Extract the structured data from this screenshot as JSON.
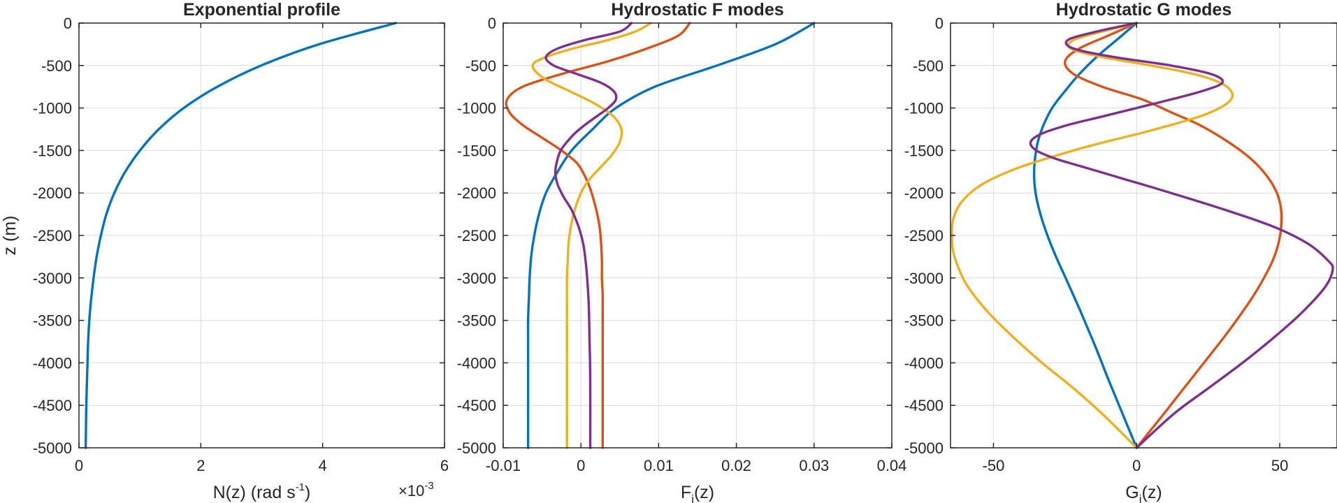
{
  "colors": {
    "axis": "#262626",
    "grid": "#dcdcdc",
    "series": [
      "#0072BD",
      "#D95319",
      "#EDB120",
      "#7E2F8E"
    ]
  },
  "chart_data": [
    {
      "type": "line",
      "title": "Exponential profile",
      "xlabel": {
        "main": "N(z) (rad s",
        "sup": "-1",
        "tail": ")"
      },
      "ylabel": "z (m)",
      "exponent_label": "×10",
      "exponent_power": "-3",
      "xlim": [
        0,
        6
      ],
      "ylim": [
        -5000,
        0
      ],
      "xticks": [
        0,
        2,
        4,
        6
      ],
      "xtick_labels": [
        "0",
        "2",
        "4",
        "6"
      ],
      "yticks": [
        0,
        -500,
        -1000,
        -1500,
        -2000,
        -2500,
        -3000,
        -3500,
        -4000,
        -4500,
        -5000
      ],
      "ytick_labels": [
        "0",
        "-500",
        "-1000",
        "-1500",
        "-2000",
        "-2500",
        "-3000",
        "-3500",
        "-4000",
        "-4500",
        "-5000"
      ],
      "grid": true,
      "series": [
        {
          "color_index": 0,
          "z": [
            0,
            -250,
            -500,
            -750,
            -1000,
            -1250,
            -1500,
            -1750,
            -2000,
            -2250,
            -2500,
            -2750,
            -3000,
            -3250,
            -3500,
            -3750,
            -4000,
            -4250,
            -4500,
            -4750,
            -5000
          ],
          "values": [
            5.2,
            3.94,
            2.99,
            2.27,
            1.72,
            1.31,
            1.0,
            0.76,
            0.58,
            0.45,
            0.36,
            0.29,
            0.24,
            0.2,
            0.17,
            0.15,
            0.14,
            0.13,
            0.12,
            0.115,
            0.11
          ]
        }
      ]
    },
    {
      "type": "line",
      "title": "Hydrostatic F modes",
      "xlabel": {
        "main": "F",
        "sub": "j",
        "tail": "(z)"
      },
      "ylabel": "",
      "xlim": [
        -0.01,
        0.04
      ],
      "ylim": [
        -5000,
        0
      ],
      "xticks": [
        -0.01,
        0,
        0.01,
        0.02,
        0.03,
        0.04
      ],
      "xtick_labels": [
        "-0.01",
        "0",
        "0.01",
        "0.02",
        "0.03",
        "0.04"
      ],
      "yticks": [
        0,
        -500,
        -1000,
        -1500,
        -2000,
        -2500,
        -3000,
        -3500,
        -4000,
        -4500,
        -5000
      ],
      "ytick_labels": [
        "0",
        "-500",
        "-1000",
        "-1500",
        "-2000",
        "-2500",
        "-3000",
        "-3500",
        "-4000",
        "-4500",
        "-5000"
      ],
      "grid": true,
      "series": [
        {
          "color_index": 0,
          "z": [
            0,
            -250,
            -500,
            -750,
            -1000,
            -1250,
            -1500,
            -1750,
            -2000,
            -2250,
            -2500,
            -2750,
            -3000,
            -3250,
            -3500,
            -3750,
            -4000,
            -4500,
            -5000
          ],
          "values": [
            0.03,
            0.025,
            0.0175,
            0.0095,
            0.0045,
            0.0015,
            -0.0012,
            -0.003,
            -0.0045,
            -0.0054,
            -0.006,
            -0.0064,
            -0.0066,
            -0.0067,
            -0.0068,
            -0.0068,
            -0.0068,
            -0.0068,
            -0.0068
          ]
        },
        {
          "color_index": 1,
          "z": [
            0,
            -150,
            -300,
            -450,
            -600,
            -750,
            -900,
            -1050,
            -1200,
            -1350,
            -1500,
            -1650,
            -1800,
            -1950,
            -2100,
            -2250,
            -2400,
            -2600,
            -2800,
            -3000,
            -3200,
            -3400,
            -3600,
            -4000,
            -5000
          ],
          "values": [
            0.014,
            0.0125,
            0.0085,
            0.0035,
            -0.0025,
            -0.0075,
            -0.0095,
            -0.0092,
            -0.0075,
            -0.005,
            -0.0025,
            -0.0005,
            0.0005,
            0.0012,
            0.0017,
            0.0021,
            0.0024,
            0.0026,
            0.0027,
            0.0027,
            0.0028,
            0.0028,
            0.0028,
            0.0028,
            0.0028
          ]
        },
        {
          "color_index": 2,
          "z": [
            0,
            -100,
            -200,
            -300,
            -400,
            -500,
            -650,
            -800,
            -950,
            -1100,
            -1250,
            -1400,
            -1550,
            -1700,
            -1850,
            -2000,
            -2200,
            -2400,
            -2600,
            -2800,
            -3000,
            -3200,
            -3500,
            -4000,
            -5000
          ],
          "values": [
            0.009,
            0.007,
            0.0035,
            -0.001,
            -0.0045,
            -0.0062,
            -0.0048,
            -0.0015,
            0.0018,
            0.0042,
            0.0052,
            0.005,
            0.004,
            0.0025,
            0.001,
            0.0,
            -0.0008,
            -0.0013,
            -0.0016,
            -0.0017,
            -0.0018,
            -0.0018,
            -0.0018,
            -0.0018,
            -0.0018
          ]
        },
        {
          "color_index": 3,
          "z": [
            0,
            -100,
            -200,
            -300,
            -400,
            -500,
            -600,
            -700,
            -800,
            -900,
            -1000,
            -1100,
            -1200,
            -1300,
            -1400,
            -1500,
            -1600,
            -1750,
            -1900,
            -2050,
            -2200,
            -2400,
            -2600,
            -2800,
            -3000,
            -3300,
            -3700,
            -4200,
            -5000
          ],
          "values": [
            0.0065,
            0.005,
            0.0005,
            -0.003,
            -0.0045,
            -0.0035,
            -0.0005,
            0.0025,
            0.0042,
            0.0045,
            0.0035,
            0.002,
            0.0005,
            -0.0008,
            -0.0018,
            -0.0026,
            -0.003,
            -0.0033,
            -0.003,
            -0.0022,
            -0.0012,
            -0.0003,
            0.0003,
            0.0006,
            0.0008,
            0.001,
            0.0011,
            0.0012,
            0.0012
          ]
        }
      ]
    },
    {
      "type": "line",
      "title": "Hydrostatic G modes",
      "xlabel": {
        "main": "G",
        "sub": "j",
        "tail": "(z)"
      },
      "ylabel": "",
      "xlim": [
        -65,
        70
      ],
      "ylim": [
        -5000,
        0
      ],
      "xticks": [
        -50,
        0,
        50
      ],
      "xtick_labels": [
        "-50",
        "0",
        "50"
      ],
      "yticks": [
        0,
        -500,
        -1000,
        -1500,
        -2000,
        -2500,
        -3000,
        -3500,
        -4000,
        -4500,
        -5000
      ],
      "ytick_labels": [
        "0",
        "-500",
        "-1000",
        "-1500",
        "-2000",
        "-2500",
        "-3000",
        "-3500",
        "-4000",
        "-4500",
        "-5000"
      ],
      "grid": true,
      "series": [
        {
          "color_index": 0,
          "z": [
            0,
            -200,
            -400,
            -600,
            -800,
            -1000,
            -1200,
            -1400,
            -1600,
            -1800,
            -2000,
            -2200,
            -2400,
            -2600,
            -2800,
            -3000,
            -3400,
            -3800,
            -4200,
            -4600,
            -5000
          ],
          "values": [
            0,
            -7,
            -14,
            -20,
            -25,
            -29.5,
            -32.5,
            -34.5,
            -35.5,
            -35.8,
            -35.3,
            -34,
            -32.2,
            -30,
            -27.5,
            -24.8,
            -19.5,
            -14.5,
            -9.8,
            -4.9,
            0
          ]
        },
        {
          "color_index": 1,
          "z": [
            0,
            -150,
            -300,
            -450,
            -600,
            -750,
            -900,
            -1050,
            -1200,
            -1400,
            -1600,
            -1800,
            -2000,
            -2200,
            -2400,
            -2600,
            -2800,
            -3000,
            -3200,
            -3400,
            -3700,
            -4000,
            -4300,
            -4600,
            -5000
          ],
          "values": [
            0,
            -10,
            -20,
            -25,
            -22,
            -12,
            2,
            12,
            22,
            32,
            40,
            45.5,
            49,
            50.5,
            50.5,
            49.5,
            47.5,
            44.5,
            41,
            37,
            30.5,
            23.5,
            16.5,
            9.5,
            0
          ]
        },
        {
          "color_index": 2,
          "z": [
            0,
            -100,
            -200,
            -300,
            -400,
            -500,
            -600,
            -700,
            -800,
            -900,
            -1000,
            -1100,
            -1200,
            -1300,
            -1400,
            -1500,
            -1700,
            -1900,
            -2100,
            -2300,
            -2500,
            -2700,
            -2900,
            -3100,
            -3400,
            -3700,
            -4000,
            -4300,
            -4600,
            -5000
          ],
          "values": [
            0,
            -12,
            -22,
            -23,
            -12,
            5,
            20,
            29,
            33,
            33,
            29,
            22,
            12,
            1,
            -11,
            -22,
            -41,
            -54,
            -61,
            -64,
            -64.5,
            -64,
            -62,
            -59,
            -52,
            -43,
            -33,
            -22,
            -12,
            0
          ]
        },
        {
          "color_index": 3,
          "z": [
            0,
            -100,
            -200,
            -300,
            -400,
            -500,
            -600,
            -700,
            -800,
            -900,
            -1000,
            -1100,
            -1200,
            -1300,
            -1400,
            -1500,
            -1600,
            -1700,
            -1850,
            -2000,
            -2200,
            -2400,
            -2600,
            -2800,
            -2900,
            -3100,
            -3400,
            -3700,
            -4000,
            -4300,
            -4600,
            -5000
          ],
          "values": [
            0,
            -14,
            -24,
            -22,
            -8,
            12,
            26,
            30,
            23,
            12,
            0,
            -12,
            -24,
            -33,
            -37,
            -35,
            -28,
            -18,
            -3,
            12,
            31,
            48,
            60,
            67,
            68.5,
            66,
            58,
            48,
            37,
            25,
            13,
            0
          ]
        }
      ]
    }
  ]
}
